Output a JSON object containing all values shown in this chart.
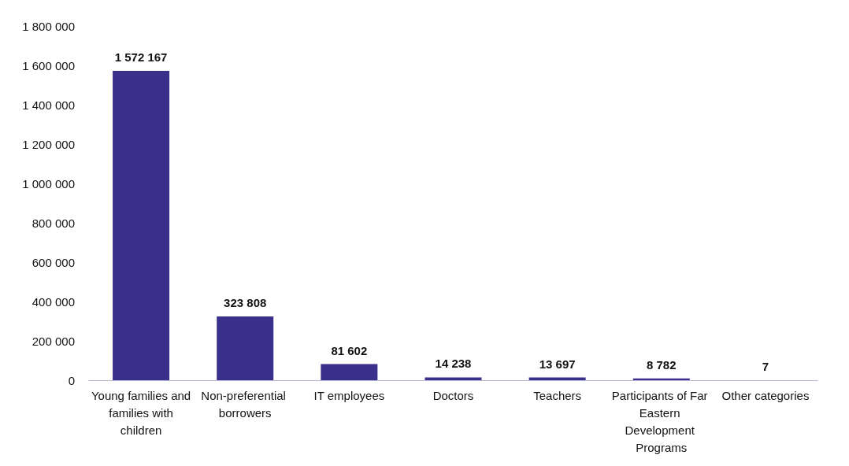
{
  "chart_data": {
    "type": "bar",
    "categories": [
      "Young families and families with children",
      "Non-preferential borrowers",
      "IT employees",
      "Doctors",
      "Teachers",
      "Participants of Far Eastern Development Programs",
      "Other categories"
    ],
    "values": [
      1572167,
      323808,
      81602,
      14238,
      13697,
      8782,
      7
    ],
    "value_labels": [
      "1 572 167",
      "323 808",
      "81 602",
      "14 238",
      "13 697",
      "8 782",
      "7"
    ],
    "color": "#3b2f8c",
    "ylim": [
      0,
      1800000
    ],
    "yticks": [
      {
        "value": 0,
        "label": "0"
      },
      {
        "value": 200000,
        "label": "200 000"
      },
      {
        "value": 400000,
        "label": "400 000"
      },
      {
        "value": 600000,
        "label": "600 000"
      },
      {
        "value": 800000,
        "label": "800 000"
      },
      {
        "value": 1000000,
        "label": "1 000 000"
      },
      {
        "value": 1200000,
        "label": "1 200 000"
      },
      {
        "value": 1400000,
        "label": "1 400 000"
      },
      {
        "value": 1600000,
        "label": "1 600 000"
      },
      {
        "value": 1800000,
        "label": "1 800 000"
      }
    ],
    "grid": false
  }
}
